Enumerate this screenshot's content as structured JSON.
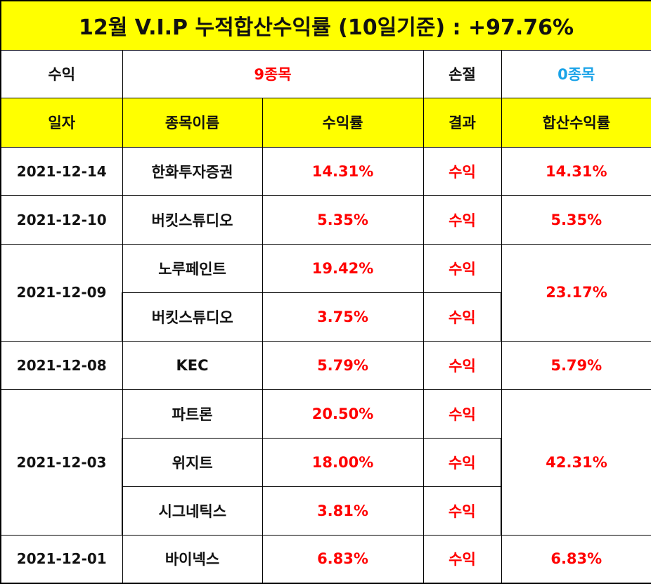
{
  "title": "12월 V.I.P 누적합산수익률 (10일기준) : +97.76%",
  "summary": {
    "profit_label": "수익",
    "profit_value": "9종목",
    "loss_label": "손절",
    "loss_value": "0종목"
  },
  "headers": {
    "date": "일자",
    "stock": "종목이름",
    "rate": "수익률",
    "result": "결과",
    "total": "합산수익률"
  },
  "rows": [
    {
      "date": "2021-12-14",
      "stock": "한화투자증권",
      "rate": "14.31%",
      "result": "수익",
      "total": "14.31%"
    },
    {
      "date": "2021-12-10",
      "stock": "버킷스튜디오",
      "rate": "5.35%",
      "result": "수익",
      "total": "5.35%"
    },
    {
      "date": "2021-12-09",
      "stock": "노루페인트",
      "rate": "19.42%",
      "result": "수익",
      "total": "23.17%"
    },
    {
      "stock": "버킷스튜디오",
      "rate": "3.75%",
      "result": "수익"
    },
    {
      "date": "2021-12-08",
      "stock": "KEC",
      "rate": "5.79%",
      "result": "수익",
      "total": "5.79%"
    },
    {
      "date": "2021-12-03",
      "stock": "파트론",
      "rate": "20.50%",
      "result": "수익",
      "total": "42.31%"
    },
    {
      "stock": "위지트",
      "rate": "18.00%",
      "result": "수익"
    },
    {
      "stock": "시그네틱스",
      "rate": "3.81%",
      "result": "수익"
    },
    {
      "date": "2021-12-01",
      "stock": "바이넥스",
      "rate": "6.83%",
      "result": "수익",
      "total": "6.83%"
    }
  ],
  "colors": {
    "header_bg": "#ffff00",
    "profit_text": "#ff0000",
    "loss_text": "#1aa3e8",
    "border": "#000000"
  }
}
